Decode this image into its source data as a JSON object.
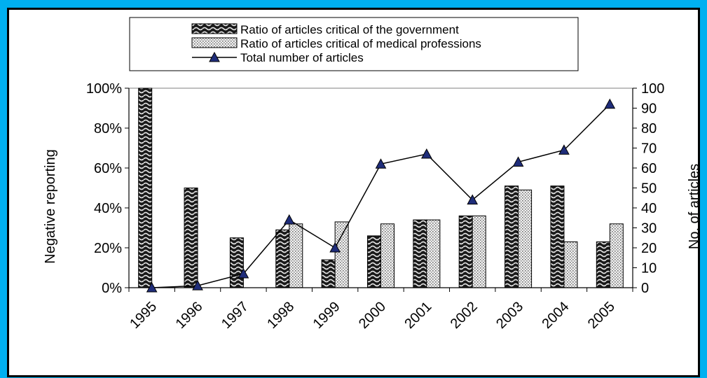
{
  "chart_data": {
    "type": "bar",
    "categories": [
      "1995",
      "1996",
      "1997",
      "1998",
      "1999",
      "2000",
      "2001",
      "2002",
      "2003",
      "2004",
      "2005"
    ],
    "series": [
      {
        "name": "Ratio of articles critical of the government",
        "kind": "bar",
        "axis": "left",
        "pattern": "wave-dark",
        "values": [
          100,
          50,
          25,
          29,
          14,
          26,
          34,
          36,
          51,
          51,
          23
        ]
      },
      {
        "name": "Ratio of articles critical of medical professions",
        "kind": "bar",
        "axis": "left",
        "pattern": "dots-light",
        "values": [
          0,
          0,
          0,
          32,
          33,
          32,
          34,
          36,
          49,
          23,
          32
        ]
      },
      {
        "name": "Total number of articles",
        "kind": "line",
        "axis": "right",
        "marker": "triangle",
        "marker_color": "#1f2d7a",
        "values": [
          0,
          1,
          7,
          34,
          20,
          62,
          67,
          44,
          63,
          69,
          92
        ]
      }
    ],
    "y_left": {
      "label": "Negative reporting",
      "min": 0,
      "max": 100,
      "ticks": [
        "0%",
        "20%",
        "40%",
        "60%",
        "80%",
        "100%"
      ]
    },
    "y_right": {
      "label": "No. of articles",
      "min": 0,
      "max": 100,
      "ticks": [
        "0",
        "10",
        "20",
        "30",
        "40",
        "50",
        "60",
        "70",
        "80",
        "90",
        "100"
      ]
    },
    "legend_placement": "top-center",
    "grid": false
  }
}
